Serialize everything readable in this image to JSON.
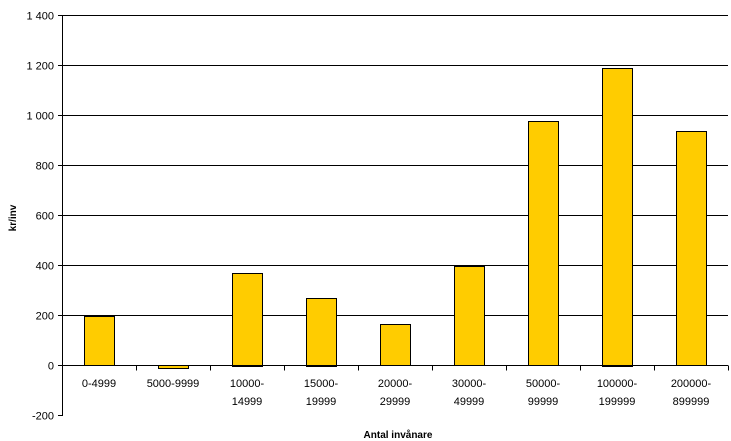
{
  "chart_data": {
    "type": "bar",
    "title": "",
    "xlabel": "Antal invånare",
    "ylabel": "kr/inv",
    "ylim": [
      -200,
      1400
    ],
    "ytick_step": 200,
    "yticks": [
      "-200",
      "0",
      "200",
      "400",
      "600",
      "800",
      "1 000",
      "1 200",
      "1 400"
    ],
    "grid": true,
    "categories": [
      [
        "0-4999"
      ],
      [
        "5000-9999"
      ],
      [
        "10000-",
        "14999"
      ],
      [
        "15000-",
        "19999"
      ],
      [
        "20000-",
        "29999"
      ],
      [
        "30000-",
        "49999"
      ],
      [
        "50000-",
        "99999"
      ],
      [
        "100000-",
        "199999"
      ],
      [
        "200000-",
        "899999"
      ]
    ],
    "values": [
      195,
      -10,
      370,
      270,
      165,
      395,
      975,
      1190,
      935
    ],
    "colors": {
      "bar": "#FFCC00",
      "bar_edge": "#000000",
      "grid": "#000000",
      "axis": "#808080"
    }
  }
}
